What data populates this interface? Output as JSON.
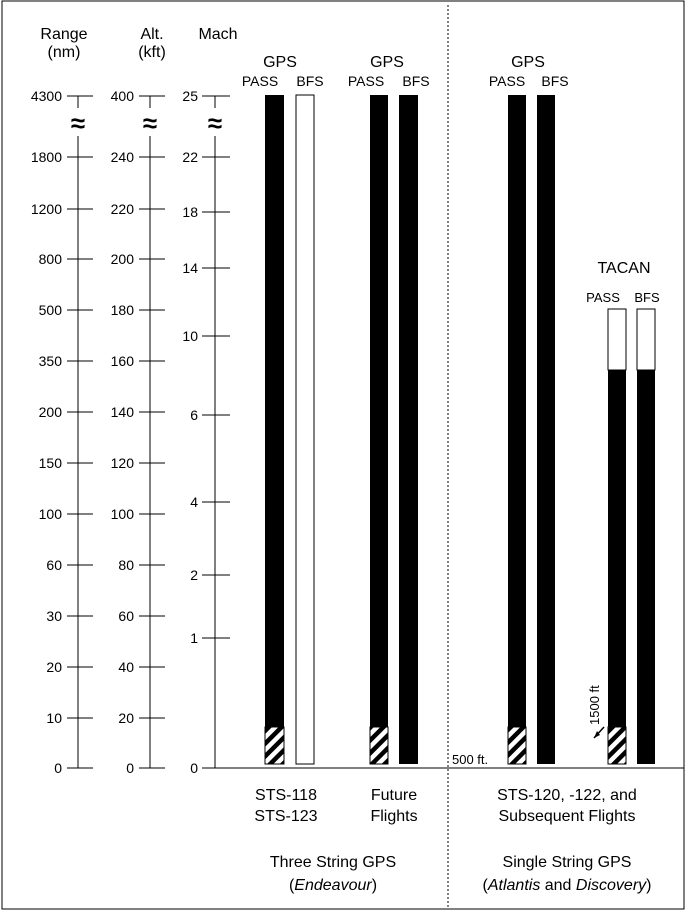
{
  "axes": {
    "range": {
      "title": "Range",
      "unit": "(nm)",
      "ticks": [
        "4300",
        "1800",
        "1200",
        "800",
        "500",
        "350",
        "200",
        "150",
        "100",
        "60",
        "30",
        "20",
        "10",
        "0"
      ]
    },
    "altitude": {
      "title": "Alt.",
      "unit": "(kft)",
      "ticks": [
        "400",
        "240",
        "220",
        "200",
        "180",
        "160",
        "140",
        "120",
        "100",
        "80",
        "60",
        "40",
        "20",
        "0"
      ]
    },
    "mach": {
      "title": "Mach",
      "ticks": [
        "25",
        "22",
        "18",
        "14",
        "10",
        "6",
        "4",
        "2",
        "1",
        "0"
      ]
    },
    "break_symbol": "≈"
  },
  "groups": {
    "gps_label": "GPS",
    "tacan_label": "TACAN",
    "pass_label": "PASS",
    "bfs_label": "BFS",
    "three_string": {
      "columns": [
        {
          "line1": "STS-118",
          "line2": "STS-123"
        },
        {
          "line1": "Future",
          "line2": "Flights"
        }
      ],
      "title": "Three String GPS",
      "subtitle_prefix": "(",
      "subtitle_italic": "Endeavour",
      "subtitle_suffix": ")"
    },
    "single_string": {
      "column": {
        "line1": "STS-120, -122, and",
        "line2": "Subsequent Flights"
      },
      "title": "Single String GPS",
      "subtitle_prefix": "(",
      "subtitle_italic_1": "Atlantis",
      "subtitle_middle": " and ",
      "subtitle_italic_2": "Discovery",
      "subtitle_suffix": ")"
    }
  },
  "annotations": {
    "low_altitude": "500 ft.",
    "tacan_low": "1500 ft"
  },
  "bars": {
    "three_string": [
      {
        "system": "PASS",
        "coverage": "full",
        "fill": "#000000",
        "low_segment": "hatched"
      },
      {
        "system": "BFS",
        "coverage": "none",
        "fill": "#ffffff",
        "low_segment": "none"
      },
      {
        "system": "PASS",
        "coverage": "full",
        "fill": "#000000",
        "low_segment": "hatched"
      },
      {
        "system": "BFS",
        "coverage": "full",
        "fill": "#000000",
        "low_segment": "none"
      }
    ],
    "single_string": [
      {
        "system": "PASS",
        "coverage": "full",
        "fill": "#000000",
        "low_segment": "hatched"
      },
      {
        "system": "BFS",
        "coverage": "full",
        "fill": "#000000",
        "low_segment": "none"
      }
    ],
    "tacan": [
      {
        "system": "PASS",
        "coverage_top_range_nm": "350",
        "fill": "#000000",
        "low_segment": "hatched"
      },
      {
        "system": "BFS",
        "coverage_top_range_nm": "350",
        "fill": "#000000",
        "low_segment": "none"
      }
    ]
  }
}
